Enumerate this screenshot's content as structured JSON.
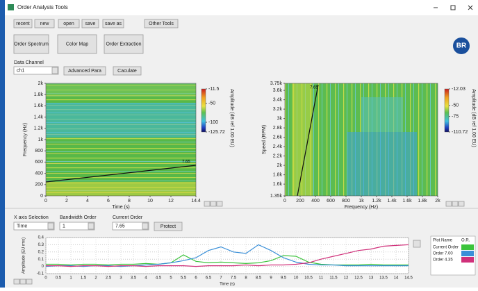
{
  "window": {
    "title": "Order Analysis Tools"
  },
  "toolbar": [
    "recent",
    "new",
    "open",
    "save",
    "save as",
    "Other Tools"
  ],
  "mode_buttons": [
    "Order Spectrum",
    "Color Map",
    "Order Extraction"
  ],
  "logo_text": "BR",
  "data_channel": {
    "label": "Data Channel",
    "value": "ch1"
  },
  "buttons": [
    "Advanced Para",
    "Caculate"
  ],
  "order_spectrum": {
    "type": "heatmap",
    "xlabel": "Time (s)",
    "ylabel": "Frequency (Hz)",
    "xlim": [
      0,
      14.4
    ],
    "xticks": [
      0,
      2,
      4,
      6,
      8,
      10,
      12,
      14.4
    ],
    "ylim": [
      0,
      2000
    ],
    "yticks": [
      0,
      200,
      400,
      600,
      800,
      {
        "value": 1000,
        "label": "1k"
      },
      {
        "value": 1200,
        "label": "1.2k"
      },
      {
        "value": 1400,
        "label": "1.4k"
      },
      {
        "value": 1600,
        "label": "1.6k"
      },
      {
        "value": 1800,
        "label": "1.8k"
      },
      {
        "value": 2000,
        "label": "2k"
      }
    ],
    "colorbar": {
      "title": "Amplitude (dB ref 1.00 EU)",
      "lim": [
        -125.72,
        -11.5
      ],
      "ticks": [
        -11.5,
        -50,
        -100,
        -125.72
      ]
    },
    "order_label": "7.65"
  },
  "rpm_spectrum": {
    "type": "heatmap",
    "xlabel": "Frequency (Hz)",
    "ylabel": "Speed (RPM)",
    "xlim": [
      0,
      2000
    ],
    "xticks": [
      0,
      200,
      400,
      600,
      800,
      {
        "value": 1000,
        "label": "1k"
      },
      {
        "value": 1200,
        "label": "1.2k"
      },
      {
        "value": 1400,
        "label": "1.4k"
      },
      {
        "value": 1600,
        "label": "1.6k"
      },
      {
        "value": 1800,
        "label": "1.8k"
      },
      {
        "value": 2000,
        "label": "2k"
      }
    ],
    "ylim": [
      1350,
      3750
    ],
    "yticks": [
      {
        "value": 1350,
        "label": "1.35k"
      },
      {
        "value": 1600,
        "label": "1.6k"
      },
      {
        "value": 1800,
        "label": "1.8k"
      },
      {
        "value": 2000,
        "label": "2k"
      },
      {
        "value": 2200,
        "label": "2.2k"
      },
      {
        "value": 2400,
        "label": "2.4k"
      },
      {
        "value": 2600,
        "label": "2.6k"
      },
      {
        "value": 2800,
        "label": "2.8k"
      },
      {
        "value": 3000,
        "label": "3k"
      },
      {
        "value": 3200,
        "label": "3.2k"
      },
      {
        "value": 3400,
        "label": "3.4k"
      },
      {
        "value": 3600,
        "label": "3.6k"
      },
      {
        "value": 3750,
        "label": "3.75k"
      }
    ],
    "colorbar": {
      "title": "Amplitude (dB ref 1.00 EU)",
      "lim": [
        -110.72,
        -12.03
      ],
      "ticks": [
        -12.03,
        -50,
        -75,
        -110.72
      ]
    },
    "order_label": "7.65"
  },
  "controls": {
    "x_axis_selection": {
      "label": "X axis Selection",
      "value": "Time"
    },
    "bandwidth_order": {
      "label": "Bandwidth Order",
      "value": "1"
    },
    "current_order": {
      "label": "Current Order",
      "value": "7.65"
    },
    "button": "Protect"
  },
  "chart_data": {
    "type": "line",
    "xlabel": "Time (s)",
    "ylabel": "Amplitude (EU rms)",
    "x": [
      0,
      0.5,
      1,
      1.5,
      2,
      2.5,
      3,
      3.5,
      4,
      4.5,
      5,
      5.5,
      6,
      6.5,
      7,
      7.5,
      8,
      8.5,
      9,
      9.5,
      10,
      10.5,
      11,
      11.5,
      12,
      12.5,
      13,
      13.5,
      14,
      14.5
    ],
    "xlim": [
      0,
      14.5
    ],
    "xticks": [
      0,
      0.5,
      1,
      1.5,
      2,
      2.5,
      3,
      3.5,
      4,
      4.5,
      5,
      5.5,
      6,
      6.5,
      7,
      7.5,
      8,
      8.5,
      9,
      9.5,
      10,
      10.5,
      11,
      11.5,
      12,
      12.5,
      13,
      13.5,
      14,
      14.5
    ],
    "ylim": [
      -0.1,
      0.4
    ],
    "yticks": [
      -0.1,
      0,
      0.1,
      0.2,
      0.3,
      0.4
    ],
    "grid": true,
    "legend_headers": [
      "Plot Name",
      "O.R."
    ],
    "series": [
      {
        "name": "Current Order",
        "color": "#3cc43c",
        "values": [
          0.03,
          0.03,
          0.02,
          0.03,
          0.03,
          0.02,
          0.03,
          0.03,
          0.04,
          0.03,
          0.05,
          0.16,
          0.07,
          0.05,
          0.06,
          0.05,
          0.04,
          0.05,
          0.08,
          0.15,
          0.14,
          0.06,
          0.03,
          0.02,
          0.02,
          0.02,
          0.03,
          0.02,
          0.02,
          0.02
        ]
      },
      {
        "name": "Order 7.00",
        "color": "#3a8fd8",
        "values": [
          0,
          0.01,
          0.01,
          0,
          0.01,
          0.01,
          0,
          0.01,
          0.02,
          0.03,
          0.05,
          0.08,
          0.12,
          0.22,
          0.27,
          0.2,
          0.18,
          0.3,
          0.22,
          0.12,
          0.06,
          0.03,
          0.02,
          0.02,
          0.01,
          0.01,
          0.01,
          0.01,
          0.01,
          0.01
        ]
      },
      {
        "name": "Order 4.35",
        "color": "#d0307a",
        "values": [
          0.01,
          0.01,
          0,
          0.01,
          0.01,
          0,
          0.01,
          0.01,
          0,
          0.01,
          0.01,
          0.01,
          0,
          0.01,
          0.01,
          0.01,
          0.02,
          0.01,
          0.02,
          0.02,
          0.03,
          0.05,
          0.1,
          0.14,
          0.18,
          0.22,
          0.24,
          0.28,
          0.29,
          0.3
        ]
      }
    ]
  }
}
